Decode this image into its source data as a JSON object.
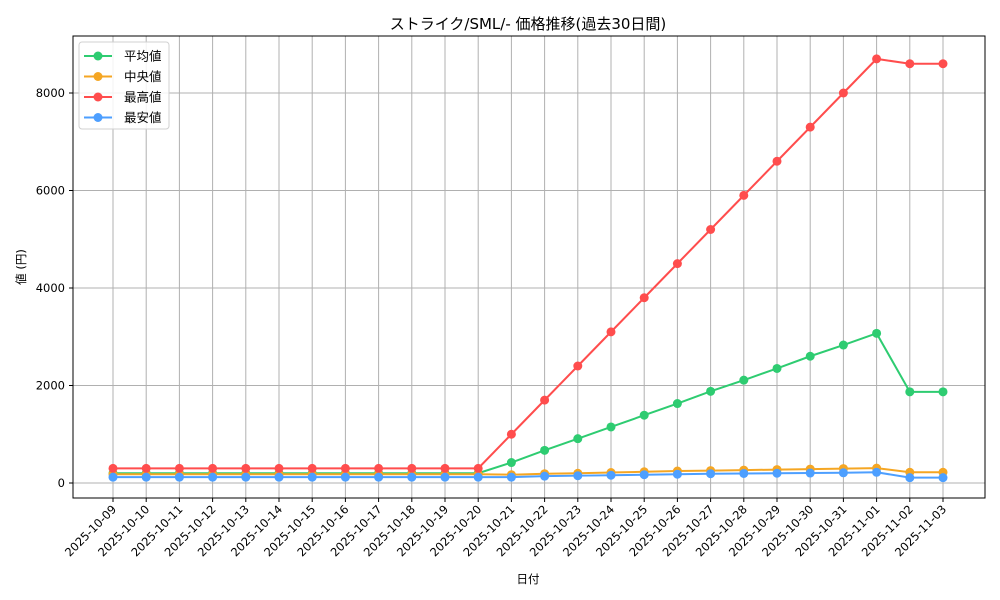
{
  "chart_data": {
    "type": "line",
    "title": "ストライク/SML/- 価格推移(過去30日間)",
    "xlabel": "日付",
    "ylabel": "値 (円)",
    "ylim": [
      -320,
      9150
    ],
    "yticks": [
      0,
      2000,
      4000,
      6000,
      8000
    ],
    "grid": true,
    "legend_position": "upper left",
    "categories": [
      "2025-10-09",
      "2025-10-10",
      "2025-10-11",
      "2025-10-12",
      "2025-10-13",
      "2025-10-14",
      "2025-10-15",
      "2025-10-16",
      "2025-10-17",
      "2025-10-18",
      "2025-10-19",
      "2025-10-20",
      "2025-10-21",
      "2025-10-22",
      "2025-10-23",
      "2025-10-24",
      "2025-10-25",
      "2025-10-26",
      "2025-10-27",
      "2025-10-28",
      "2025-10-29",
      "2025-10-30",
      "2025-10-31",
      "2025-11-01",
      "2025-11-02",
      "2025-11-03"
    ],
    "series": [
      {
        "name": "平均値",
        "color": "#2ecc71",
        "values": [
          200,
          200,
          200,
          200,
          200,
          200,
          200,
          200,
          200,
          200,
          200,
          200,
          420,
          670,
          910,
          1150,
          1390,
          1630,
          1880,
          2110,
          2350,
          2600,
          2830,
          3070,
          1870,
          1870
        ]
      },
      {
        "name": "中央値",
        "color": "#f5a623",
        "values": [
          180,
          180,
          180,
          180,
          180,
          180,
          180,
          180,
          180,
          180,
          180,
          180,
          170,
          190,
          200,
          215,
          230,
          245,
          255,
          265,
          275,
          285,
          295,
          305,
          220,
          220
        ]
      },
      {
        "name": "最高値",
        "color": "#ff4d4d",
        "values": [
          300,
          300,
          300,
          300,
          300,
          300,
          300,
          300,
          300,
          300,
          300,
          300,
          1000,
          1700,
          2400,
          3100,
          3800,
          4500,
          5200,
          5900,
          6600,
          7300,
          8000,
          8700,
          8600,
          8600
        ]
      },
      {
        "name": "最安値",
        "color": "#4d9fff",
        "values": [
          120,
          120,
          120,
          120,
          120,
          120,
          120,
          120,
          120,
          120,
          120,
          120,
          120,
          140,
          150,
          160,
          170,
          180,
          190,
          195,
          200,
          205,
          210,
          220,
          110,
          110
        ]
      }
    ]
  }
}
